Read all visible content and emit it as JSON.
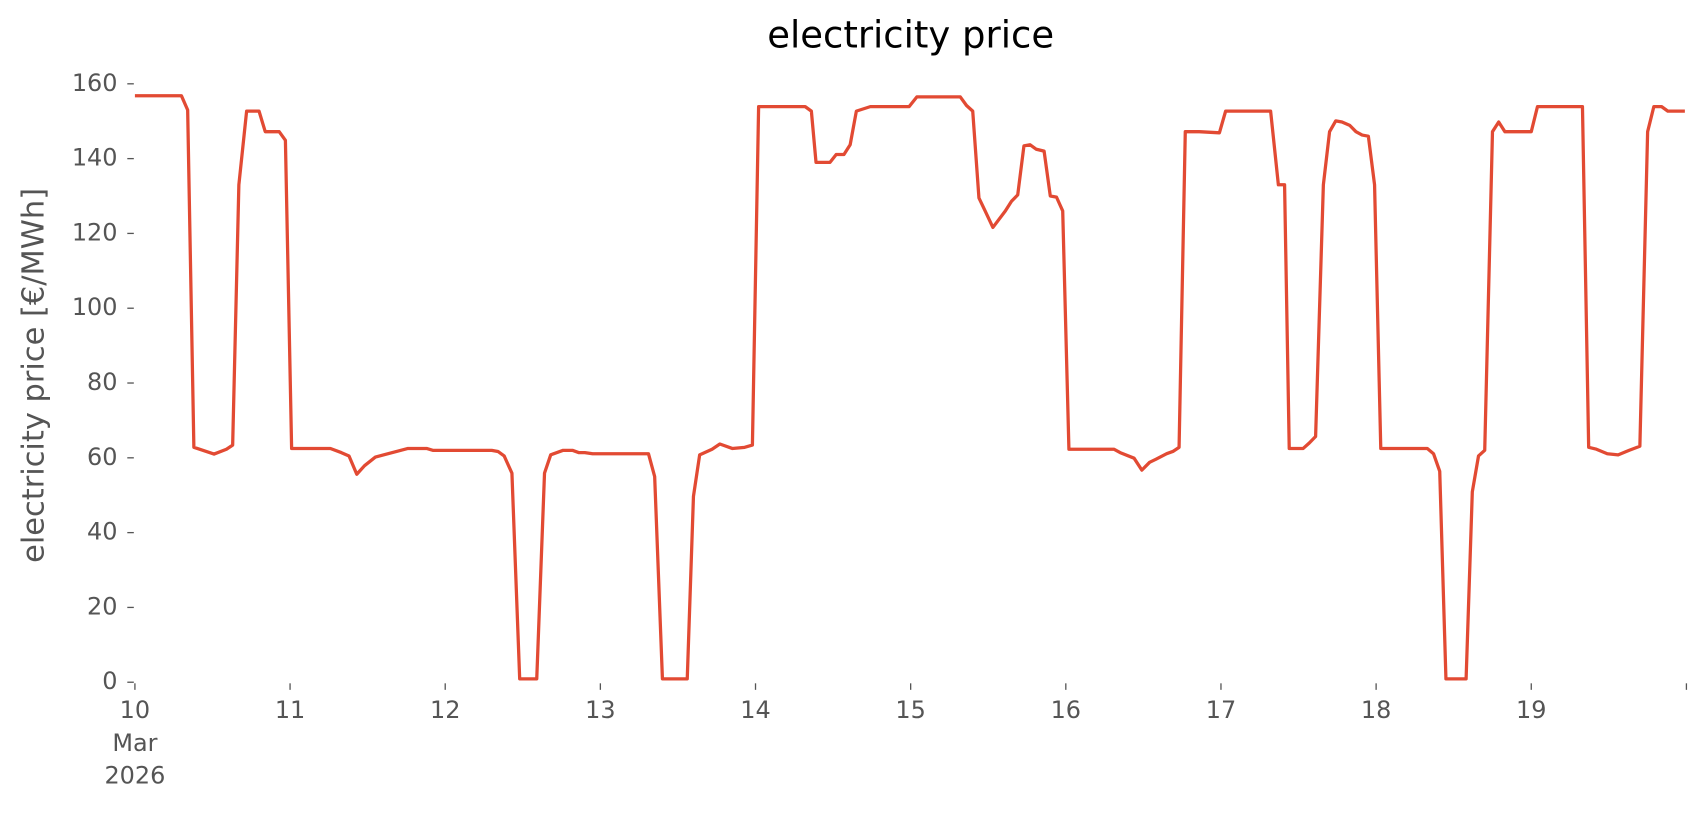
{
  "chart_data": {
    "type": "line",
    "title": "electricity price",
    "y_label": "electricity price [€/MWh]",
    "grid": false,
    "xlim": [
      10,
      20
    ],
    "xticks": [
      {
        "value": 10,
        "label": "10\nMar\n2026"
      },
      11,
      12,
      13,
      14,
      15,
      16,
      17,
      18,
      19
    ],
    "ylim": [
      0,
      160
    ],
    "yticks": [
      0,
      20,
      40,
      60,
      80,
      100,
      120,
      140,
      160
    ],
    "x": [
      10.0,
      10.3,
      10.34,
      10.38,
      10.51,
      10.59,
      10.63,
      10.67,
      10.72,
      10.8,
      10.84,
      10.93,
      10.97,
      11.01,
      11.26,
      11.33,
      11.38,
      11.43,
      11.48,
      11.55,
      11.76,
      11.88,
      11.92,
      12.3,
      12.34,
      12.38,
      12.43,
      12.48,
      12.59,
      12.64,
      12.68,
      12.76,
      12.82,
      12.86,
      12.9,
      12.95,
      13.31,
      13.35,
      13.4,
      13.56,
      13.6,
      13.64,
      13.72,
      13.77,
      13.85,
      13.93,
      13.98,
      14.02,
      14.32,
      14.36,
      14.39,
      14.48,
      14.52,
      14.57,
      14.61,
      14.65,
      14.74,
      14.99,
      15.04,
      15.32,
      15.36,
      15.4,
      15.44,
      15.48,
      15.53,
      15.61,
      15.65,
      15.69,
      15.73,
      15.77,
      15.81,
      15.86,
      15.9,
      15.94,
      15.98,
      16.02,
      16.31,
      16.35,
      16.44,
      16.49,
      16.54,
      16.58,
      16.65,
      16.69,
      16.73,
      16.77,
      16.86,
      16.99,
      17.03,
      17.32,
      17.37,
      17.41,
      17.44,
      17.53,
      17.57,
      17.61,
      17.66,
      17.7,
      17.74,
      17.78,
      17.83,
      17.87,
      17.91,
      17.95,
      17.99,
      18.03,
      18.33,
      18.37,
      18.41,
      18.45,
      18.58,
      18.62,
      18.66,
      18.7,
      18.75,
      18.79,
      18.83,
      19.0,
      19.04,
      19.33,
      19.37,
      19.42,
      19.49,
      19.56,
      19.63,
      19.7,
      19.75,
      19.79,
      19.84,
      19.88,
      19.99
    ],
    "series": [
      {
        "name": "electricity price",
        "color": "#E24A33",
        "values": [
          156.8,
          156.8,
          153,
          62.8,
          61,
          62.3,
          63.4,
          133,
          152.7,
          152.7,
          147.2,
          147.2,
          144.9,
          62.5,
          62.5,
          61.4,
          60.5,
          55.6,
          57.9,
          60.2,
          62.5,
          62.5,
          62,
          62,
          61.7,
          60.5,
          55.9,
          0.9,
          0.9,
          55.9,
          60.8,
          62,
          62,
          61.4,
          61.4,
          61.1,
          61.1,
          55,
          0.9,
          0.9,
          49.7,
          60.8,
          62.3,
          63.7,
          62.5,
          62.8,
          63.4,
          153.9,
          153.9,
          152.7,
          139,
          139,
          141.1,
          141.1,
          143.7,
          152.7,
          153.9,
          153.9,
          156.5,
          156.5,
          154.2,
          152.7,
          129.5,
          126,
          121.6,
          126,
          128.6,
          130.3,
          143.4,
          143.7,
          142.5,
          142,
          130,
          129.7,
          126,
          62.3,
          62.3,
          61.4,
          59.9,
          56.7,
          58.8,
          59.6,
          61.1,
          61.7,
          62.8,
          147.2,
          147.2,
          146.9,
          152.7,
          152.7,
          133,
          133,
          62.5,
          62.5,
          64,
          65.7,
          133,
          147.2,
          150.1,
          149.8,
          148.9,
          147.2,
          146.3,
          146,
          133,
          62.5,
          62.5,
          61.1,
          56.4,
          0.9,
          0.9,
          50.9,
          60.5,
          62,
          147.2,
          149.8,
          147.2,
          147.2,
          153.9,
          153.9,
          62.8,
          62.3,
          61.1,
          60.8,
          62,
          63.1,
          147.2,
          153.9,
          153.9,
          152.7,
          152.7
        ]
      }
    ]
  }
}
